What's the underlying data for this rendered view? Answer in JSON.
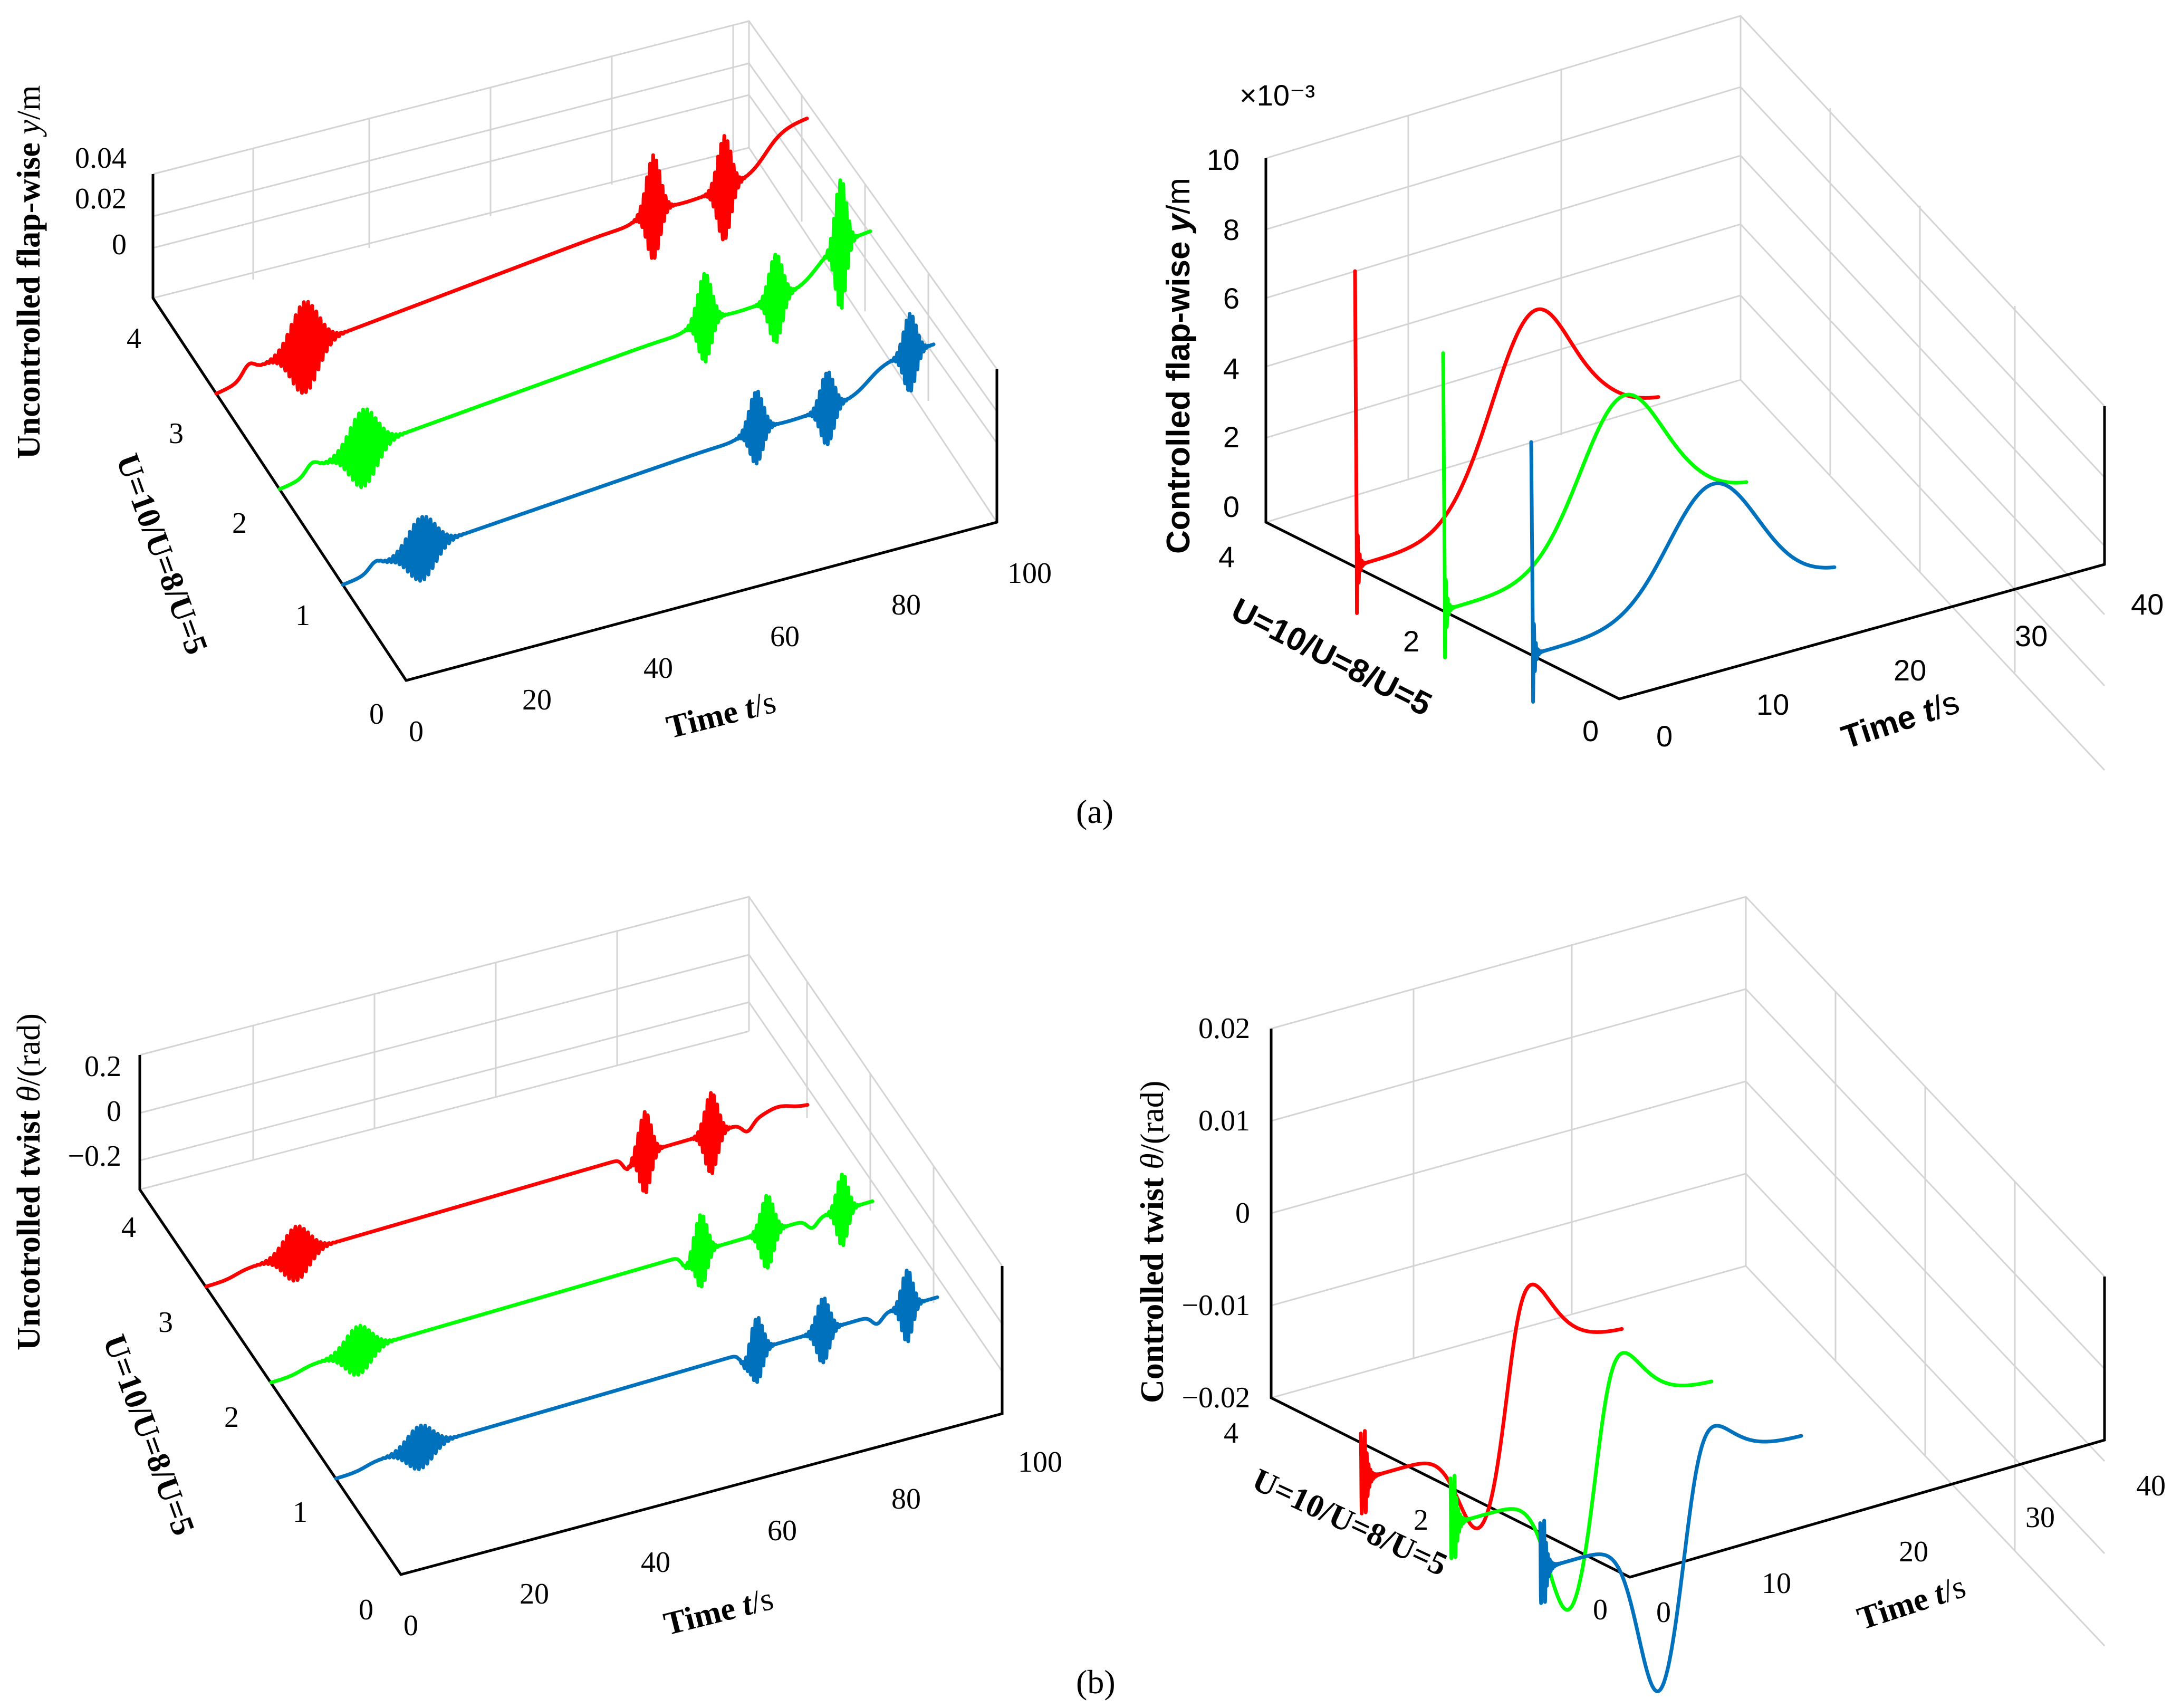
{
  "captions": {
    "a": "(a)",
    "b": "(b)"
  },
  "colors": {
    "U=10": "#ff0000",
    "U=8": "#00ff00",
    "U=5": "#0072bd"
  },
  "chart_data": [
    {
      "id": "a-left",
      "type": "line",
      "zlabel_parts": [
        "Uncontrolled flap-wise ",
        "y",
        "/m"
      ],
      "xlabel_parts": [
        "Time ",
        "t",
        "/s"
      ],
      "ylabel": "U=10/U=8/U=5",
      "xlim": [
        0,
        100
      ],
      "xticks": [
        "0",
        "20",
        "40",
        "60",
        "80",
        "100"
      ],
      "yticks": [
        "0",
        "1",
        "2",
        "3",
        "4"
      ],
      "zticks": [
        "0",
        "0.02",
        "0.04"
      ],
      "series": [
        {
          "name": "U=10",
          "color": "#ff0000",
          "depth": 3,
          "segments": [
            [
              0,
              0,
              0
            ],
            [
              5,
              0.01,
              0
            ],
            [
              9,
              0.003,
              0
            ],
            [
              15,
              0.006,
              0.018
            ],
            [
              19,
              0.006,
              0
            ],
            [
              60,
              0.012,
              0
            ],
            [
              72,
              0.03,
              0
            ],
            [
              74,
              0.015,
              0.03
            ],
            [
              78,
              0.02,
              0
            ],
            [
              84,
              0.022,
              0
            ],
            [
              87,
              0.025,
              0.03
            ],
            [
              91,
              0.025,
              0
            ],
            [
              95,
              0.035,
              0
            ]
          ]
        },
        {
          "name": "U=8",
          "color": "#00ff00",
          "depth": 2,
          "segments": [
            [
              0,
              0,
              0
            ],
            [
              4,
              0.008,
              0
            ],
            [
              8,
              0.003,
              0
            ],
            [
              13,
              0.005,
              0.014
            ],
            [
              17,
              0.005,
              0
            ],
            [
              58,
              0.012,
              0
            ],
            [
              68,
              0.026,
              0
            ],
            [
              71,
              0.015,
              0.03
            ],
            [
              75,
              0.02,
              0
            ],
            [
              80,
              0.022,
              0
            ],
            [
              83,
              0.025,
              0.03
            ],
            [
              87,
              0.025,
              0
            ],
            [
              91,
              0.03,
              0
            ],
            [
              94,
              0.03,
              0.035
            ]
          ]
        },
        {
          "name": "U=5",
          "color": "#0072bd",
          "depth": 1,
          "segments": [
            [
              0,
              0,
              0
            ],
            [
              4,
              0.006,
              0
            ],
            [
              8,
              0.003,
              0
            ],
            [
              12,
              0.004,
              0.008
            ],
            [
              16,
              0.004,
              0
            ],
            [
              55,
              0.01,
              0
            ],
            [
              64,
              0.022,
              0
            ],
            [
              67,
              0.014,
              0.028
            ],
            [
              71,
              0.018,
              0
            ],
            [
              76,
              0.02,
              0
            ],
            [
              79,
              0.022,
              0.028
            ],
            [
              83,
              0.022,
              0
            ],
            [
              88,
              0.026,
              0
            ],
            [
              91,
              0.026,
              0.03
            ],
            [
              95,
              0.022,
              0
            ]
          ]
        }
      ]
    },
    {
      "id": "a-right",
      "type": "line",
      "zlabel_parts": [
        "Controlled flap-wise ",
        "y",
        "/m"
      ],
      "zexponent": "×10⁻³",
      "xlabel_parts": [
        "Time ",
        "t",
        "/s"
      ],
      "ylabel": "U=10/U=8/U=5",
      "xlim": [
        0,
        40
      ],
      "xticks": [
        "0",
        "10",
        "20",
        "30",
        "40"
      ],
      "yticks": [
        "0",
        "2",
        "4"
      ],
      "zticks": [
        "0",
        "2",
        "4",
        "6",
        "8",
        "10"
      ],
      "series": [
        {
          "name": "U=10",
          "color": "#ff0000",
          "depth": 3,
          "peak_time": 15,
          "peak_value": 6.0,
          "initial_spike": 8.6,
          "final_value": 2.4
        },
        {
          "name": "U=8",
          "color": "#00ff00",
          "depth": 2,
          "peak_time": 15,
          "peak_value": 4.8,
          "initial_spike": 7.5,
          "final_value": 1.2
        },
        {
          "name": "U=5",
          "color": "#0072bd",
          "depth": 1,
          "peak_time": 15,
          "peak_value": 3.5,
          "initial_spike": 6.2,
          "final_value": 0.0
        }
      ]
    },
    {
      "id": "b-left",
      "type": "line",
      "zlabel_parts": [
        "Uncotrolled twist ",
        "θ",
        "/(rad)"
      ],
      "xlabel_parts": [
        "Time ",
        "t",
        "/s"
      ],
      "ylabel": "U=10/U=8/U=5",
      "xlim": [
        0,
        100
      ],
      "xticks": [
        "0",
        "20",
        "40",
        "60",
        "80",
        "100"
      ],
      "yticks": [
        "0",
        "1",
        "2",
        "3",
        "4"
      ],
      "zticks": [
        "−0.2",
        "0",
        "0.2"
      ],
      "series": [
        {
          "name": "U=10",
          "color": "#ff0000",
          "depth": 3
        },
        {
          "name": "U=8",
          "color": "#00ff00",
          "depth": 2
        },
        {
          "name": "U=5",
          "color": "#0072bd",
          "depth": 1
        }
      ]
    },
    {
      "id": "b-right",
      "type": "line",
      "zlabel_parts": [
        "Controlled twist ",
        "θ",
        "/(rad)"
      ],
      "xlabel_parts": [
        "Time ",
        "t",
        "/s"
      ],
      "ylabel": "U=10/U=8/U=5",
      "xlim": [
        0,
        40
      ],
      "xticks": [
        "0",
        "10",
        "20",
        "30",
        "40"
      ],
      "yticks": [
        "0",
        "2",
        "4"
      ],
      "zticks": [
        "−0.02",
        "−0.01",
        "0",
        "0.01",
        "0.02"
      ],
      "series": [
        {
          "name": "U=10",
          "color": "#ff0000",
          "depth": 3,
          "peak_value": 0.02,
          "trough_value": -0.013,
          "final_value": 0.0
        },
        {
          "name": "U=8",
          "color": "#00ff00",
          "depth": 2,
          "peak_value": 0.016,
          "trough_value": -0.017,
          "final_value": 0.0
        },
        {
          "name": "U=5",
          "color": "#0072bd",
          "depth": 1,
          "peak_value": 0.011,
          "trough_value": -0.021,
          "final_value": 0.0
        }
      ]
    }
  ]
}
